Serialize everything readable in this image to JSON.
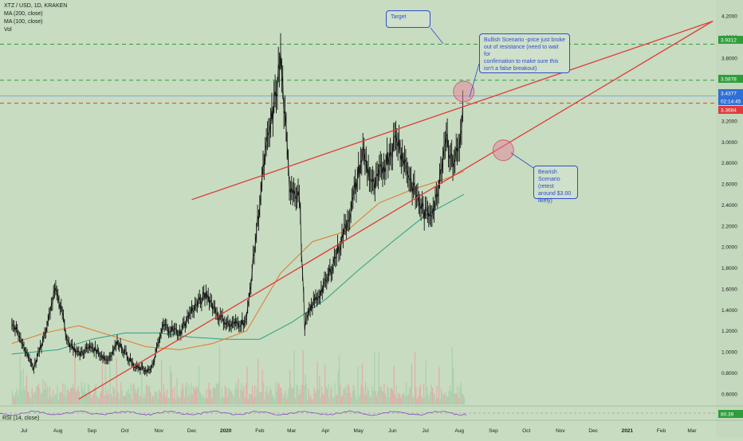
{
  "header": {
    "symbol": "XTZ / USD, 1D, KRAKEN",
    "ma200": "MA (200, close)",
    "ma100": "MA (100, close)",
    "vol": "Vol"
  },
  "annotations": {
    "target": "Target",
    "bullish": [
      "Bullish Scenario -price just broke",
      "out of resistance (need to wait for",
      "confirmation to make sure this",
      "isn't a false breakout)"
    ],
    "bearish": [
      "Bearish",
      "Scenario (retest",
      "around $3.00",
      "likely)"
    ]
  },
  "rsi_label": "RSI (14, close)",
  "price_tags": [
    {
      "label": "3.9312",
      "color": "#2e9e3a"
    },
    {
      "label": "3.5878",
      "color": "#2e9e3a"
    },
    {
      "label": "3.4377",
      "color": "#2f6fd6"
    },
    {
      "label": "02:14:45",
      "color": "#2f6fd6"
    },
    {
      "label": "3.3684",
      "color": "#e03b3b"
    },
    {
      "label": "80.39",
      "color": "#2e9e3a"
    }
  ],
  "chart_data": {
    "type": "line",
    "title": "XTZ / USD, 1D, KRAKEN",
    "ylim": [
      0.5,
      4.2
    ],
    "y_ticks": [
      "4.2000",
      "4.0000",
      "3.8000",
      "3.6000",
      "3.4000",
      "3.2000",
      "3.0000",
      "2.8000",
      "2.6000",
      "2.4000",
      "2.2000",
      "2.0000",
      "1.8000",
      "1.6000",
      "1.4000",
      "1.2000",
      "1.0000",
      "0.8000",
      "0.6000"
    ],
    "x_ticks": [
      "Jul",
      "Aug",
      "Sep",
      "Oct",
      "Nov",
      "Dec",
      "2020",
      "Feb",
      "Mar",
      "Apr",
      "May",
      "Jun",
      "Jul",
      "Aug",
      "Sep",
      "Oct",
      "Nov",
      "Dec",
      "2021",
      "Feb",
      "Mar"
    ],
    "series": [
      {
        "name": "XTZ / USD",
        "x": [
          "2019-06-20",
          "2019-07-01",
          "2019-07-10",
          "2019-07-20",
          "2019-07-30",
          "2019-08-10",
          "2019-08-20",
          "2019-09-01",
          "2019-09-15",
          "2019-09-25",
          "2019-10-10",
          "2019-10-25",
          "2019-11-05",
          "2019-11-20",
          "2019-12-01",
          "2019-12-15",
          "2019-12-25",
          "2020-01-05",
          "2020-01-20",
          "2020-02-05",
          "2020-02-15",
          "2020-02-20",
          "2020-02-28",
          "2020-03-08",
          "2020-03-13",
          "2020-03-20",
          "2020-04-01",
          "2020-04-15",
          "2020-04-25",
          "2020-05-05",
          "2020-05-15",
          "2020-05-25",
          "2020-06-05",
          "2020-06-20",
          "2020-07-01",
          "2020-07-10",
          "2020-07-20",
          "2020-07-25",
          "2020-08-01",
          "2020-08-05"
        ],
        "values": [
          1.28,
          1.05,
          0.85,
          1.15,
          1.65,
          1.1,
          0.98,
          1.05,
          0.92,
          1.1,
          0.85,
          0.82,
          1.25,
          1.18,
          1.4,
          1.55,
          1.35,
          1.25,
          1.3,
          2.8,
          3.4,
          3.8,
          2.6,
          2.5,
          1.25,
          1.45,
          1.65,
          2.05,
          2.4,
          2.9,
          2.55,
          2.8,
          3.05,
          2.55,
          2.3,
          2.4,
          3.1,
          2.8,
          2.95,
          3.44
        ]
      },
      {
        "name": "MA (200, close)",
        "x": [
          "2019-06-20",
          "2019-08-01",
          "2019-09-01",
          "2019-10-01",
          "2019-11-01",
          "2019-12-01",
          "2020-01-01",
          "2020-02-01",
          "2020-03-01",
          "2020-04-01",
          "2020-05-01",
          "2020-06-01",
          "2020-07-01",
          "2020-08-05"
        ],
        "values": [
          0.98,
          1.02,
          1.12,
          1.18,
          1.18,
          1.14,
          1.12,
          1.12,
          1.28,
          1.5,
          1.78,
          2.05,
          2.3,
          2.5
        ]
      },
      {
        "name": "MA (100, close)",
        "x": [
          "2019-06-20",
          "2019-07-20",
          "2019-08-20",
          "2019-09-20",
          "2019-10-20",
          "2019-11-20",
          "2019-12-20",
          "2020-01-20",
          "2020-02-20",
          "2020-03-20",
          "2020-04-20",
          "2020-05-20",
          "2020-06-20",
          "2020-07-20",
          "2020-08-05"
        ],
        "values": [
          1.08,
          1.18,
          1.25,
          1.15,
          1.05,
          1.02,
          1.08,
          1.2,
          1.75,
          2.05,
          2.15,
          2.42,
          2.55,
          2.65,
          2.72
        ]
      }
    ],
    "horizontal_lines": [
      {
        "y": 3.9312,
        "color": "#2e9e3a",
        "style": "dashed"
      },
      {
        "y": 3.5878,
        "color": "#2e9e3a",
        "style": "dashed"
      },
      {
        "y": 3.4377,
        "color": "#7ea7e0",
        "style": "solid"
      },
      {
        "y": 3.3684,
        "color": "#e03b3b",
        "style": "dashed"
      }
    ],
    "trendlines": [
      {
        "from": [
          "2019-12-01",
          2.45
        ],
        "to": [
          "2021-03-20",
          4.15
        ],
        "color": "#e03b3b"
      },
      {
        "from": [
          "2019-08-20",
          0.55
        ],
        "to": [
          "2021-03-20",
          4.15
        ],
        "color": "#e03b3b"
      }
    ],
    "grid": false
  }
}
